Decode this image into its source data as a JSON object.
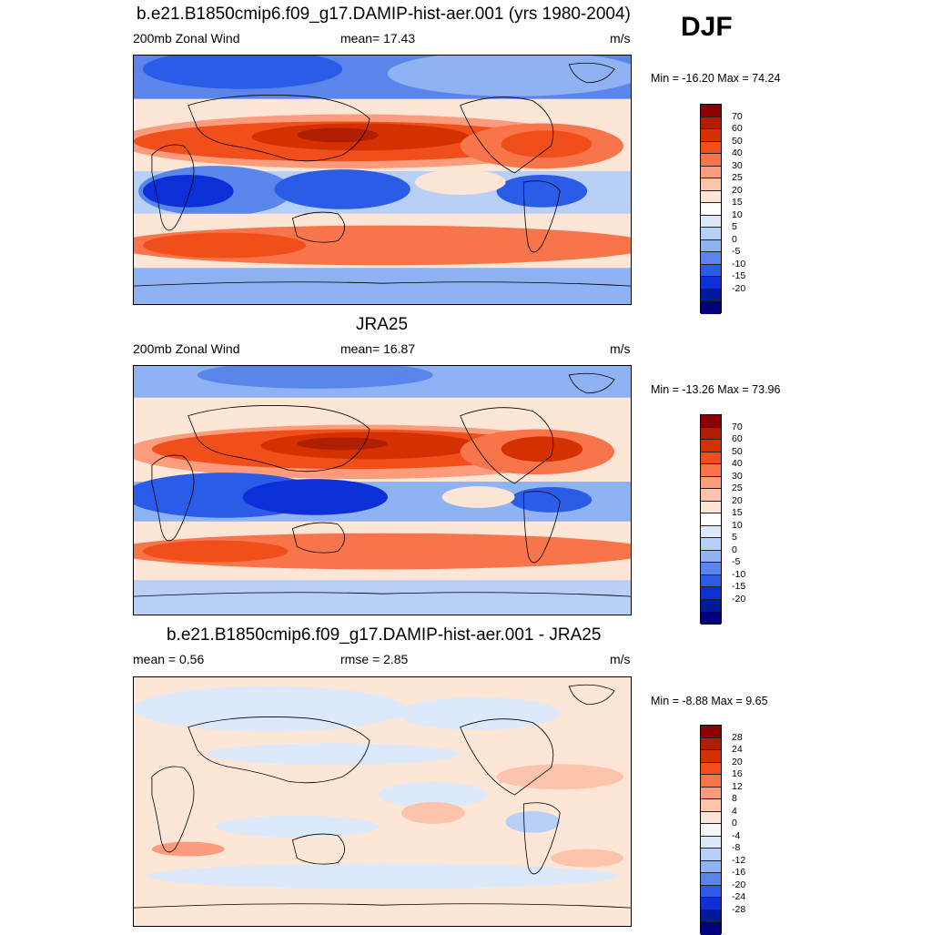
{
  "season": "DJF",
  "panels": [
    {
      "title": "b.e21.B1850cmip6.f09_g17.DAMIP-hist-aer.001 (yrs 1980-2004)",
      "left": "200mb Zonal Wind",
      "center": "mean=  17.43",
      "right": "m/s",
      "minmax": "Min = -16.20 Max =  74.24"
    },
    {
      "title": "JRA25",
      "left": "200mb Zonal Wind",
      "center": "mean=  16.87",
      "right": "m/s",
      "minmax": "Min = -13.26 Max =  73.96"
    },
    {
      "title": "b.e21.B1850cmip6.f09_g17.DAMIP-hist-aer.001 - JRA25",
      "left": "mean =   0.56",
      "center": "rmse =   2.85",
      "right": "m/s",
      "minmax": "Min =  -8.88 Max =   9.65"
    }
  ],
  "colorbar_full": {
    "labels": [
      "70",
      "60",
      "50",
      "40",
      "30",
      "25",
      "20",
      "15",
      "10",
      "5",
      "0",
      "-5",
      "-10",
      "-15",
      "-20"
    ],
    "colors": [
      "#8b0000",
      "#b01e00",
      "#d43000",
      "#f04e1a",
      "#f8744a",
      "#fc9c7c",
      "#fdc3ab",
      "#fde6d6",
      "#ffffff",
      "#dbe9fb",
      "#b8d0f7",
      "#8fb3f2",
      "#5a86ec",
      "#2a5ce8",
      "#0c2fd8",
      "#001a9c",
      "#00007a"
    ]
  },
  "colorbar_diff": {
    "labels": [
      "28",
      "24",
      "20",
      "16",
      "12",
      "8",
      "4",
      "0",
      "-4",
      "-8",
      "-12",
      "-16",
      "-20",
      "-24",
      "-28"
    ],
    "colors": [
      "#8b0000",
      "#b01e00",
      "#d43000",
      "#f04e1a",
      "#f8744a",
      "#fc9c7c",
      "#fdc3ab",
      "#fde6d6",
      "#f6f6f6",
      "#dbe9fb",
      "#b8d0f7",
      "#8fb3f2",
      "#5a86ec",
      "#2a5ce8",
      "#0c2fd8",
      "#001a9c",
      "#00007a"
    ]
  },
  "map_colors": {
    "jet_core": "#b01e00",
    "jet_strong": "#d43000",
    "jet": "#f04e1a",
    "jet_weak": "#f8744a",
    "pos1": "#fc9c7c",
    "pos2": "#fdc3ab",
    "pos3": "#fde6d6",
    "neg1": "#dbe9fb",
    "neg2": "#b8d0f7",
    "neg3": "#8fb3f2",
    "neg4": "#5a86ec",
    "neg5": "#2a5ce8",
    "neg6": "#0c2fd8"
  }
}
